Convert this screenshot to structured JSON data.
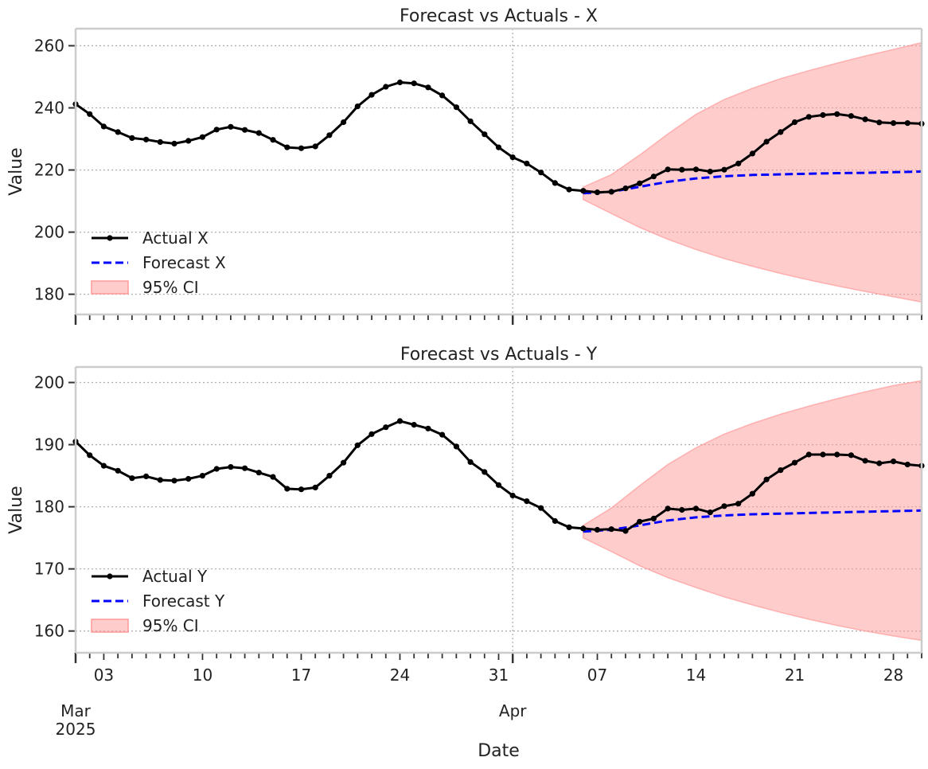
{
  "chart_data": [
    {
      "type": "line",
      "title": "Forecast vs Actuals - X",
      "xlabel": "",
      "ylabel": "Value",
      "xlim": [
        "2025-03-01",
        "2025-04-30"
      ],
      "ylim": [
        173.5,
        265.5
      ],
      "yticks": [
        180,
        200,
        220,
        240,
        260
      ],
      "grid": true,
      "legend_position": "lower-left",
      "series": [
        {
          "name": "Actual X",
          "style": "solid-with-markers",
          "color": "#000000",
          "x": [
            "2025-03-01",
            "2025-03-02",
            "2025-03-03",
            "2025-03-04",
            "2025-03-05",
            "2025-03-06",
            "2025-03-07",
            "2025-03-08",
            "2025-03-09",
            "2025-03-10",
            "2025-03-11",
            "2025-03-12",
            "2025-03-13",
            "2025-03-14",
            "2025-03-15",
            "2025-03-16",
            "2025-03-17",
            "2025-03-18",
            "2025-03-19",
            "2025-03-20",
            "2025-03-21",
            "2025-03-22",
            "2025-03-23",
            "2025-03-24",
            "2025-03-25",
            "2025-03-26",
            "2025-03-27",
            "2025-03-28",
            "2025-03-29",
            "2025-03-30",
            "2025-03-31",
            "2025-04-01",
            "2025-04-02",
            "2025-04-03",
            "2025-04-04",
            "2025-04-05",
            "2025-04-06",
            "2025-04-07",
            "2025-04-08",
            "2025-04-09",
            "2025-04-10",
            "2025-04-11",
            "2025-04-12",
            "2025-04-13",
            "2025-04-14",
            "2025-04-15",
            "2025-04-16",
            "2025-04-17",
            "2025-04-18",
            "2025-04-19",
            "2025-04-20",
            "2025-04-21",
            "2025-04-22",
            "2025-04-23",
            "2025-04-24",
            "2025-04-25",
            "2025-04-26",
            "2025-04-27",
            "2025-04-28",
            "2025-04-29",
            "2025-04-30"
          ],
          "values": [
            241.2,
            238.0,
            234.0,
            232.2,
            230.3,
            229.8,
            229.0,
            228.5,
            229.4,
            230.6,
            233.0,
            233.9,
            232.9,
            231.9,
            229.7,
            227.3,
            227.0,
            227.6,
            231.2,
            235.4,
            240.5,
            244.2,
            246.8,
            248.2,
            247.9,
            246.6,
            244.0,
            240.2,
            235.7,
            231.5,
            227.3,
            224.1,
            222.1,
            219.2,
            215.8,
            213.7,
            213.3,
            212.8,
            213.0,
            214.1,
            215.7,
            217.9,
            220.2,
            220.1,
            220.2,
            219.5,
            220.1,
            222.1,
            225.3,
            229.1,
            232.2,
            235.4,
            237.1,
            237.7,
            238.0,
            237.4,
            236.3,
            235.3,
            235.1,
            235.1,
            234.9
          ]
        },
        {
          "name": "Forecast X",
          "style": "dashed",
          "color": "#0000ff",
          "x": [
            "2025-04-06",
            "2025-04-08",
            "2025-04-10",
            "2025-04-12",
            "2025-04-14",
            "2025-04-16",
            "2025-04-18",
            "2025-04-20",
            "2025-04-22",
            "2025-04-24",
            "2025-04-26",
            "2025-04-28",
            "2025-04-30"
          ],
          "values": [
            212.5,
            213.0,
            214.6,
            216.2,
            217.3,
            218.0,
            218.4,
            218.6,
            218.8,
            219.0,
            219.1,
            219.3,
            219.5
          ]
        },
        {
          "name": "95% CI",
          "style": "band",
          "color": "#ff9999",
          "x": [
            "2025-04-06",
            "2025-04-08",
            "2025-04-10",
            "2025-04-12",
            "2025-04-14",
            "2025-04-16",
            "2025-04-18",
            "2025-04-20",
            "2025-04-22",
            "2025-04-24",
            "2025-04-26",
            "2025-04-28",
            "2025-04-30"
          ],
          "lower": [
            210.5,
            206.0,
            201.5,
            197.7,
            194.4,
            191.5,
            189.0,
            186.7,
            184.6,
            182.7,
            180.9,
            179.2,
            177.5
          ],
          "upper": [
            214.5,
            218.5,
            224.8,
            231.6,
            237.9,
            242.7,
            246.3,
            249.4,
            252.0,
            254.4,
            256.7,
            258.8,
            261.0
          ]
        }
      ]
    },
    {
      "type": "line",
      "title": "Forecast vs Actuals - Y",
      "xlabel": "Date",
      "ylabel": "Value",
      "xlim": [
        "2025-03-01",
        "2025-04-30"
      ],
      "ylim": [
        156.5,
        202.5
      ],
      "yticks": [
        160,
        170,
        180,
        190,
        200
      ],
      "xtick_major": [
        {
          "date": "2025-03-01",
          "label": "Mar",
          "sublabel": "2025"
        },
        {
          "date": "2025-04-01",
          "label": "Apr",
          "sublabel": ""
        }
      ],
      "xtick_minor_labeled": [
        {
          "date": "2025-03-03",
          "label": "03"
        },
        {
          "date": "2025-03-10",
          "label": "10"
        },
        {
          "date": "2025-03-17",
          "label": "17"
        },
        {
          "date": "2025-03-24",
          "label": "24"
        },
        {
          "date": "2025-03-31",
          "label": "31"
        },
        {
          "date": "2025-04-07",
          "label": "07"
        },
        {
          "date": "2025-04-14",
          "label": "14"
        },
        {
          "date": "2025-04-21",
          "label": "21"
        },
        {
          "date": "2025-04-28",
          "label": "28"
        }
      ],
      "grid": true,
      "legend_position": "lower-left",
      "series": [
        {
          "name": "Actual Y",
          "style": "solid-with-markers",
          "color": "#000000",
          "x": [
            "2025-03-01",
            "2025-03-02",
            "2025-03-03",
            "2025-03-04",
            "2025-03-05",
            "2025-03-06",
            "2025-03-07",
            "2025-03-08",
            "2025-03-09",
            "2025-03-10",
            "2025-03-11",
            "2025-03-12",
            "2025-03-13",
            "2025-03-14",
            "2025-03-15",
            "2025-03-16",
            "2025-03-17",
            "2025-03-18",
            "2025-03-19",
            "2025-03-20",
            "2025-03-21",
            "2025-03-22",
            "2025-03-23",
            "2025-03-24",
            "2025-03-25",
            "2025-03-26",
            "2025-03-27",
            "2025-03-28",
            "2025-03-29",
            "2025-03-30",
            "2025-03-31",
            "2025-04-01",
            "2025-04-02",
            "2025-04-03",
            "2025-04-04",
            "2025-04-05",
            "2025-04-06",
            "2025-04-07",
            "2025-04-08",
            "2025-04-09",
            "2025-04-10",
            "2025-04-11",
            "2025-04-12",
            "2025-04-13",
            "2025-04-14",
            "2025-04-15",
            "2025-04-16",
            "2025-04-17",
            "2025-04-18",
            "2025-04-19",
            "2025-04-20",
            "2025-04-21",
            "2025-04-22",
            "2025-04-23",
            "2025-04-24",
            "2025-04-25",
            "2025-04-26",
            "2025-04-27",
            "2025-04-28",
            "2025-04-29",
            "2025-04-30"
          ],
          "values": [
            190.5,
            188.3,
            186.6,
            185.8,
            184.6,
            184.9,
            184.3,
            184.2,
            184.5,
            185.0,
            186.1,
            186.4,
            186.2,
            185.5,
            184.8,
            182.9,
            182.8,
            183.1,
            185.0,
            187.1,
            189.9,
            191.7,
            192.8,
            193.8,
            193.2,
            192.6,
            191.6,
            189.7,
            187.2,
            185.6,
            183.5,
            181.8,
            180.9,
            179.8,
            177.7,
            176.7,
            176.5,
            176.3,
            176.4,
            176.1,
            177.6,
            178.1,
            179.7,
            179.5,
            179.7,
            179.1,
            180.1,
            180.5,
            182.1,
            184.4,
            185.9,
            187.1,
            188.4,
            188.4,
            188.4,
            188.3,
            187.4,
            187.0,
            187.3,
            186.8,
            186.6
          ]
        },
        {
          "name": "Forecast Y",
          "style": "dashed",
          "color": "#0000ff",
          "x": [
            "2025-04-06",
            "2025-04-08",
            "2025-04-10",
            "2025-04-12",
            "2025-04-14",
            "2025-04-16",
            "2025-04-18",
            "2025-04-20",
            "2025-04-22",
            "2025-04-24",
            "2025-04-26",
            "2025-04-28",
            "2025-04-30"
          ],
          "values": [
            176.0,
            176.3,
            177.0,
            177.8,
            178.3,
            178.6,
            178.8,
            178.9,
            179.0,
            179.1,
            179.2,
            179.3,
            179.4
          ]
        },
        {
          "name": "95% CI",
          "style": "band",
          "color": "#ff9999",
          "x": [
            "2025-04-06",
            "2025-04-08",
            "2025-04-10",
            "2025-04-12",
            "2025-04-14",
            "2025-04-16",
            "2025-04-18",
            "2025-04-20",
            "2025-04-22",
            "2025-04-24",
            "2025-04-26",
            "2025-04-28",
            "2025-04-30"
          ],
          "lower": [
            175.0,
            172.8,
            170.5,
            168.6,
            167.0,
            165.5,
            164.2,
            163.0,
            161.9,
            160.9,
            160.0,
            159.2,
            158.5
          ],
          "upper": [
            177.0,
            179.8,
            183.4,
            186.8,
            189.5,
            191.7,
            193.4,
            194.9,
            196.2,
            197.4,
            198.5,
            199.5,
            200.3
          ]
        }
      ]
    }
  ]
}
